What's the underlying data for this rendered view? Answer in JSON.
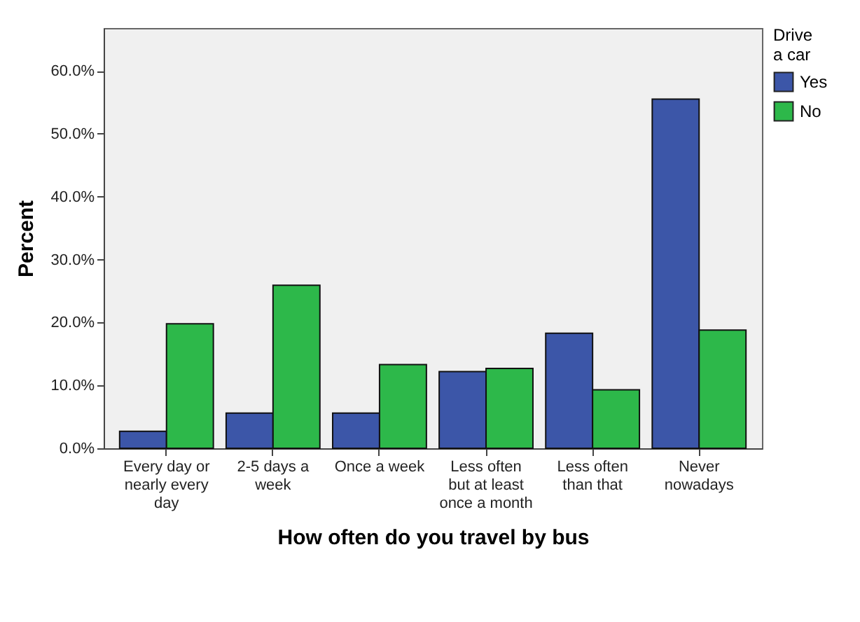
{
  "chart_data": {
    "type": "bar",
    "xlabel": "How often do you travel by bus",
    "ylabel": "Percent",
    "legend_title": "Drive a car",
    "legend": "top right",
    "grid": false,
    "categories": [
      "Every day or nearly every day",
      "2-5 days a week",
      "Once a week",
      "Less often but at least once a month",
      "Less often than that",
      "Never nowadays"
    ],
    "series": [
      {
        "name": "Yes",
        "color": "#3c56a8",
        "values": [
          2.7,
          5.6,
          5.6,
          12.2,
          18.3,
          55.5
        ]
      },
      {
        "name": "No",
        "color": "#2db84a",
        "values": [
          19.8,
          25.9,
          13.3,
          12.7,
          9.3,
          18.8
        ]
      }
    ],
    "ylim": [
      0,
      66.8
    ],
    "yticks": [
      {
        "value": 0,
        "label": "0.0%"
      },
      {
        "value": 10,
        "label": "10.0%"
      },
      {
        "value": 20,
        "label": "20.0%"
      },
      {
        "value": 30,
        "label": "30.0%"
      },
      {
        "value": 40,
        "label": "40.0%"
      },
      {
        "value": 50,
        "label": "50.0%"
      },
      {
        "value": 60,
        "label": "60.0%"
      }
    ]
  }
}
